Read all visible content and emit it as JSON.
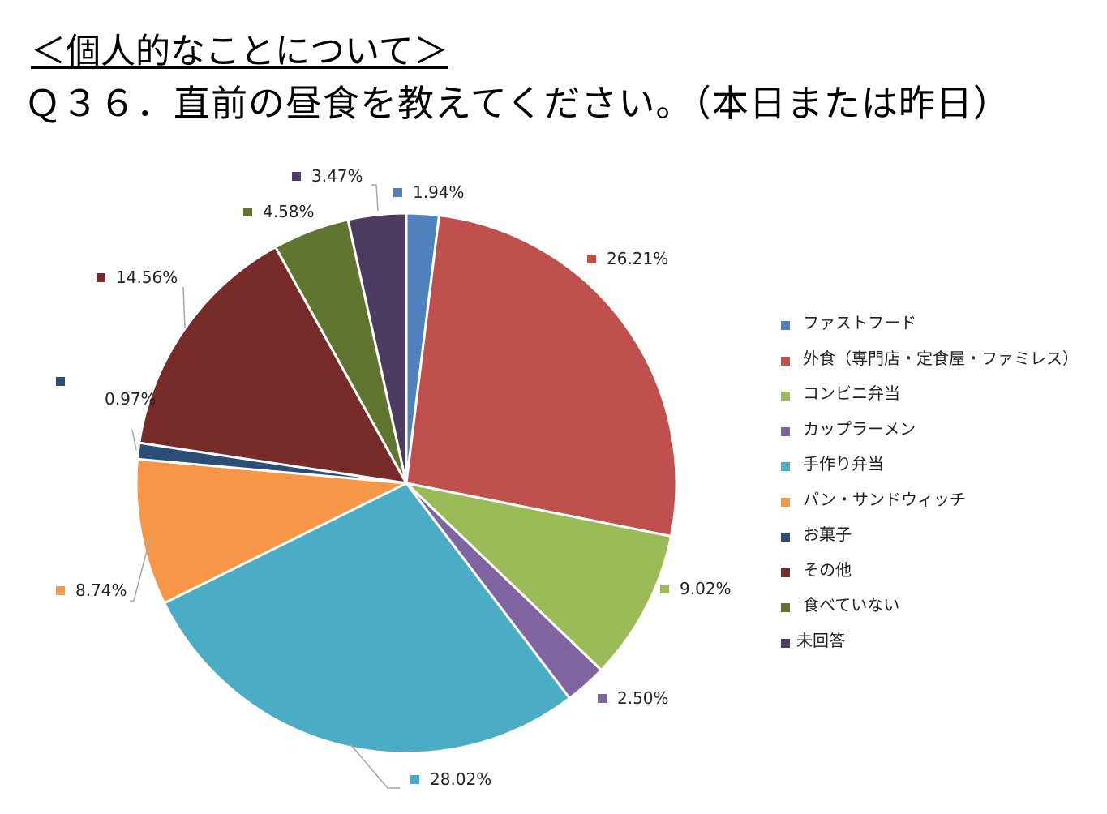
{
  "header": {
    "section": "＜個人的なことについて＞",
    "question": "Ｑ３６．直前の昼食を教えてください。（本日または昨日）"
  },
  "chart_data": {
    "type": "pie",
    "title": "",
    "slices": [
      {
        "name": "ファストフード",
        "value": 1.94,
        "label": "1.94%",
        "color": "#4F81BD"
      },
      {
        "name": "外食（専門店・定食屋・ファミレス）",
        "value": 26.21,
        "label": "26.21%",
        "color": "#C0504D"
      },
      {
        "name": "コンビニ弁当",
        "value": 9.02,
        "label": "9.02%",
        "color": "#9BBB59"
      },
      {
        "name": "カップラーメン",
        "value": 2.5,
        "label": "2.50%",
        "color": "#8064A2"
      },
      {
        "name": "手作り弁当",
        "value": 28.02,
        "label": "28.02%",
        "color": "#4BACC6"
      },
      {
        "name": "パン・サンドウィッチ",
        "value": 8.74,
        "label": "8.74%",
        "color": "#F79646"
      },
      {
        "name": "お菓子",
        "value": 0.97,
        "label": "0.97%",
        "color": "#2C4D75"
      },
      {
        "name": "その他",
        "value": 14.56,
        "label": "14.56%",
        "color": "#772C2A"
      },
      {
        "name": "食べていない",
        "value": 4.58,
        "label": "4.58%",
        "color": "#5F7530"
      },
      {
        "name": "未回答",
        "value": 3.47,
        "label": "3.47%",
        "color": "#4D3B62"
      }
    ],
    "legend_position": "right"
  }
}
